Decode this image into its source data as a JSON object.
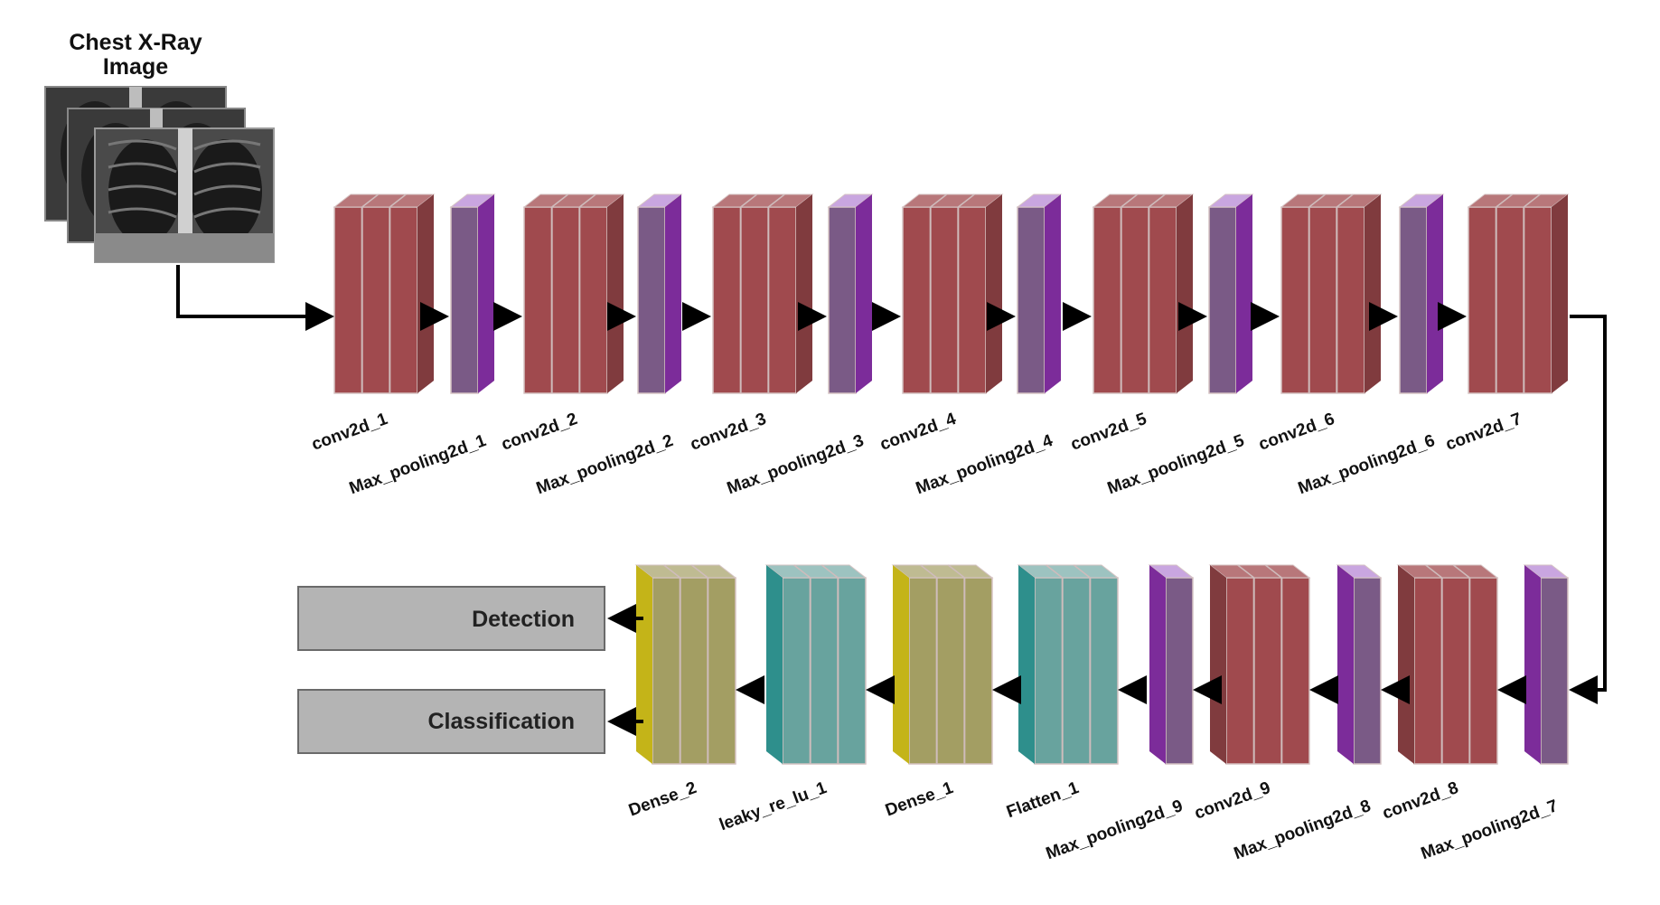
{
  "input": {
    "title_line1": "Chest X-Ray",
    "title_line2": "Image"
  },
  "top_row": [
    {
      "label": "conv2d_1",
      "kind": "conv"
    },
    {
      "label": "Max_pooling2d_1",
      "kind": "pool"
    },
    {
      "label": "conv2d_2",
      "kind": "conv"
    },
    {
      "label": "Max_pooling2d_2",
      "kind": "pool"
    },
    {
      "label": "conv2d_3",
      "kind": "conv"
    },
    {
      "label": "Max_pooling2d_3",
      "kind": "pool"
    },
    {
      "label": "conv2d_4",
      "kind": "conv"
    },
    {
      "label": "Max_pooling2d_4",
      "kind": "pool"
    },
    {
      "label": "conv2d_5",
      "kind": "conv"
    },
    {
      "label": "Max_pooling2d_5",
      "kind": "pool"
    },
    {
      "label": "conv2d_6",
      "kind": "conv"
    },
    {
      "label": "Max_pooling2d_6",
      "kind": "pool"
    },
    {
      "label": "conv2d_7",
      "kind": "conv"
    }
  ],
  "bottom_row": [
    {
      "label": "Dense_2",
      "kind": "dense"
    },
    {
      "label": "leaky_re_lu_1",
      "kind": "relu"
    },
    {
      "label": "Dense_1",
      "kind": "dense"
    },
    {
      "label": "Flatten_1",
      "kind": "flatten"
    },
    {
      "label": "Max_pooling2d_9",
      "kind": "pool"
    },
    {
      "label": "conv2d_9",
      "kind": "conv"
    },
    {
      "label": "Max_pooling2d_8",
      "kind": "pool"
    },
    {
      "label": "conv2d_8",
      "kind": "conv"
    },
    {
      "label": "Max_pooling2d_7",
      "kind": "pool"
    }
  ],
  "outputs": {
    "detection": "Detection",
    "classification": "Classification"
  },
  "colors": {
    "conv": "#a04a4e",
    "pool": "#7a5a86",
    "dense": "#a39e63",
    "relu": "#68a39e",
    "flatten": "#68a39e",
    "output_box": "#b4b4b4",
    "arrow": "#000000"
  }
}
